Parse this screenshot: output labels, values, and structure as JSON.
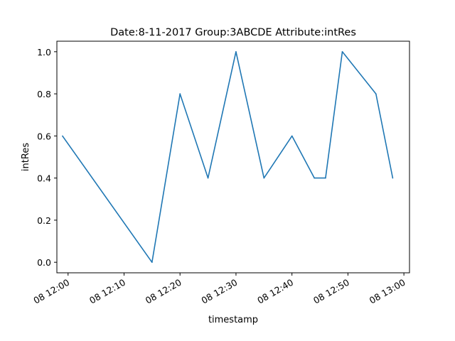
{
  "chart_data": {
    "type": "line",
    "title": "Date:8-11-2017  Group:3ABCDE Attribute:intRes",
    "xlabel": "timestamp",
    "ylabel": "intRes",
    "x_unit": "time (HH:MM)",
    "xlim": [
      "11:58",
      "13:01"
    ],
    "ylim": [
      -0.05,
      1.05
    ],
    "x_ticks": [
      "12:00",
      "12:10",
      "12:20",
      "12:30",
      "12:40",
      "12:50",
      "13:00"
    ],
    "x_tick_labels": [
      "08 12:00",
      "08 12:10",
      "08 12:20",
      "08 12:30",
      "08 12:40",
      "08 12:50",
      "08 13:00"
    ],
    "y_ticks": [
      0.0,
      0.2,
      0.4,
      0.6,
      0.8,
      1.0
    ],
    "y_tick_labels": [
      "0.0",
      "0.2",
      "0.4",
      "0.6",
      "0.8",
      "1.0"
    ],
    "grid": false,
    "series": [
      {
        "color": "#1f77b4",
        "x": [
          "11:59",
          "12:15",
          "12:20",
          "12:25",
          "12:30",
          "12:35",
          "12:40",
          "12:44",
          "12:46",
          "12:49",
          "12:55",
          "12:58"
        ],
        "values": [
          0.6,
          0.0,
          0.8,
          0.4,
          1.0,
          0.4,
          0.6,
          0.4,
          0.4,
          1.0,
          0.8,
          0.4
        ]
      }
    ]
  }
}
